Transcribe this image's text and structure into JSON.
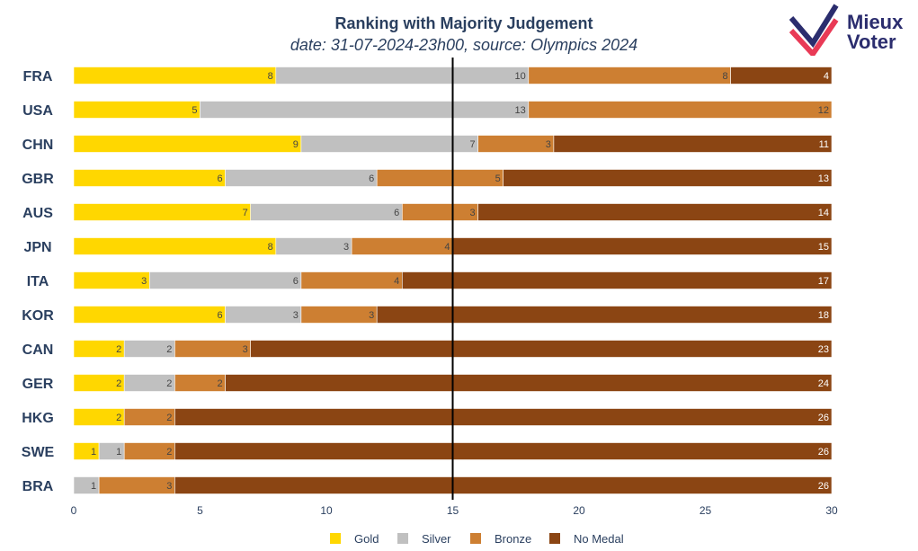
{
  "header": {
    "title": "Ranking with Majority Judgement",
    "subtitle": "date: 31-07-2024-23h00, source: Olympics 2024"
  },
  "logo": {
    "line1": "Mieux",
    "line2": "Voter"
  },
  "chart_data": {
    "type": "bar",
    "orientation": "horizontal",
    "stacked": true,
    "categories": [
      "FRA",
      "USA",
      "CHN",
      "GBR",
      "AUS",
      "JPN",
      "ITA",
      "KOR",
      "CAN",
      "GER",
      "HKG",
      "SWE",
      "BRA"
    ],
    "series": [
      {
        "name": "Gold",
        "color": "#FFD700",
        "values": [
          8,
          5,
          9,
          6,
          7,
          8,
          3,
          6,
          2,
          2,
          2,
          1,
          0
        ]
      },
      {
        "name": "Silver",
        "color": "#C0C0C0",
        "values": [
          10,
          13,
          7,
          6,
          6,
          3,
          6,
          3,
          2,
          2,
          0,
          1,
          1
        ]
      },
      {
        "name": "Bronze",
        "color": "#CD7F32",
        "values": [
          8,
          12,
          3,
          5,
          3,
          4,
          4,
          3,
          3,
          2,
          2,
          2,
          3
        ]
      },
      {
        "name": "No Medal",
        "color": "#8B4513",
        "values": [
          4,
          0,
          11,
          13,
          14,
          15,
          17,
          18,
          23,
          24,
          26,
          26,
          26
        ]
      }
    ],
    "xlim": [
      0,
      30
    ],
    "xticks": [
      0,
      5,
      10,
      15,
      20,
      25,
      30
    ],
    "median_line": 15,
    "legend_position": "bottom-center",
    "grid": false
  }
}
